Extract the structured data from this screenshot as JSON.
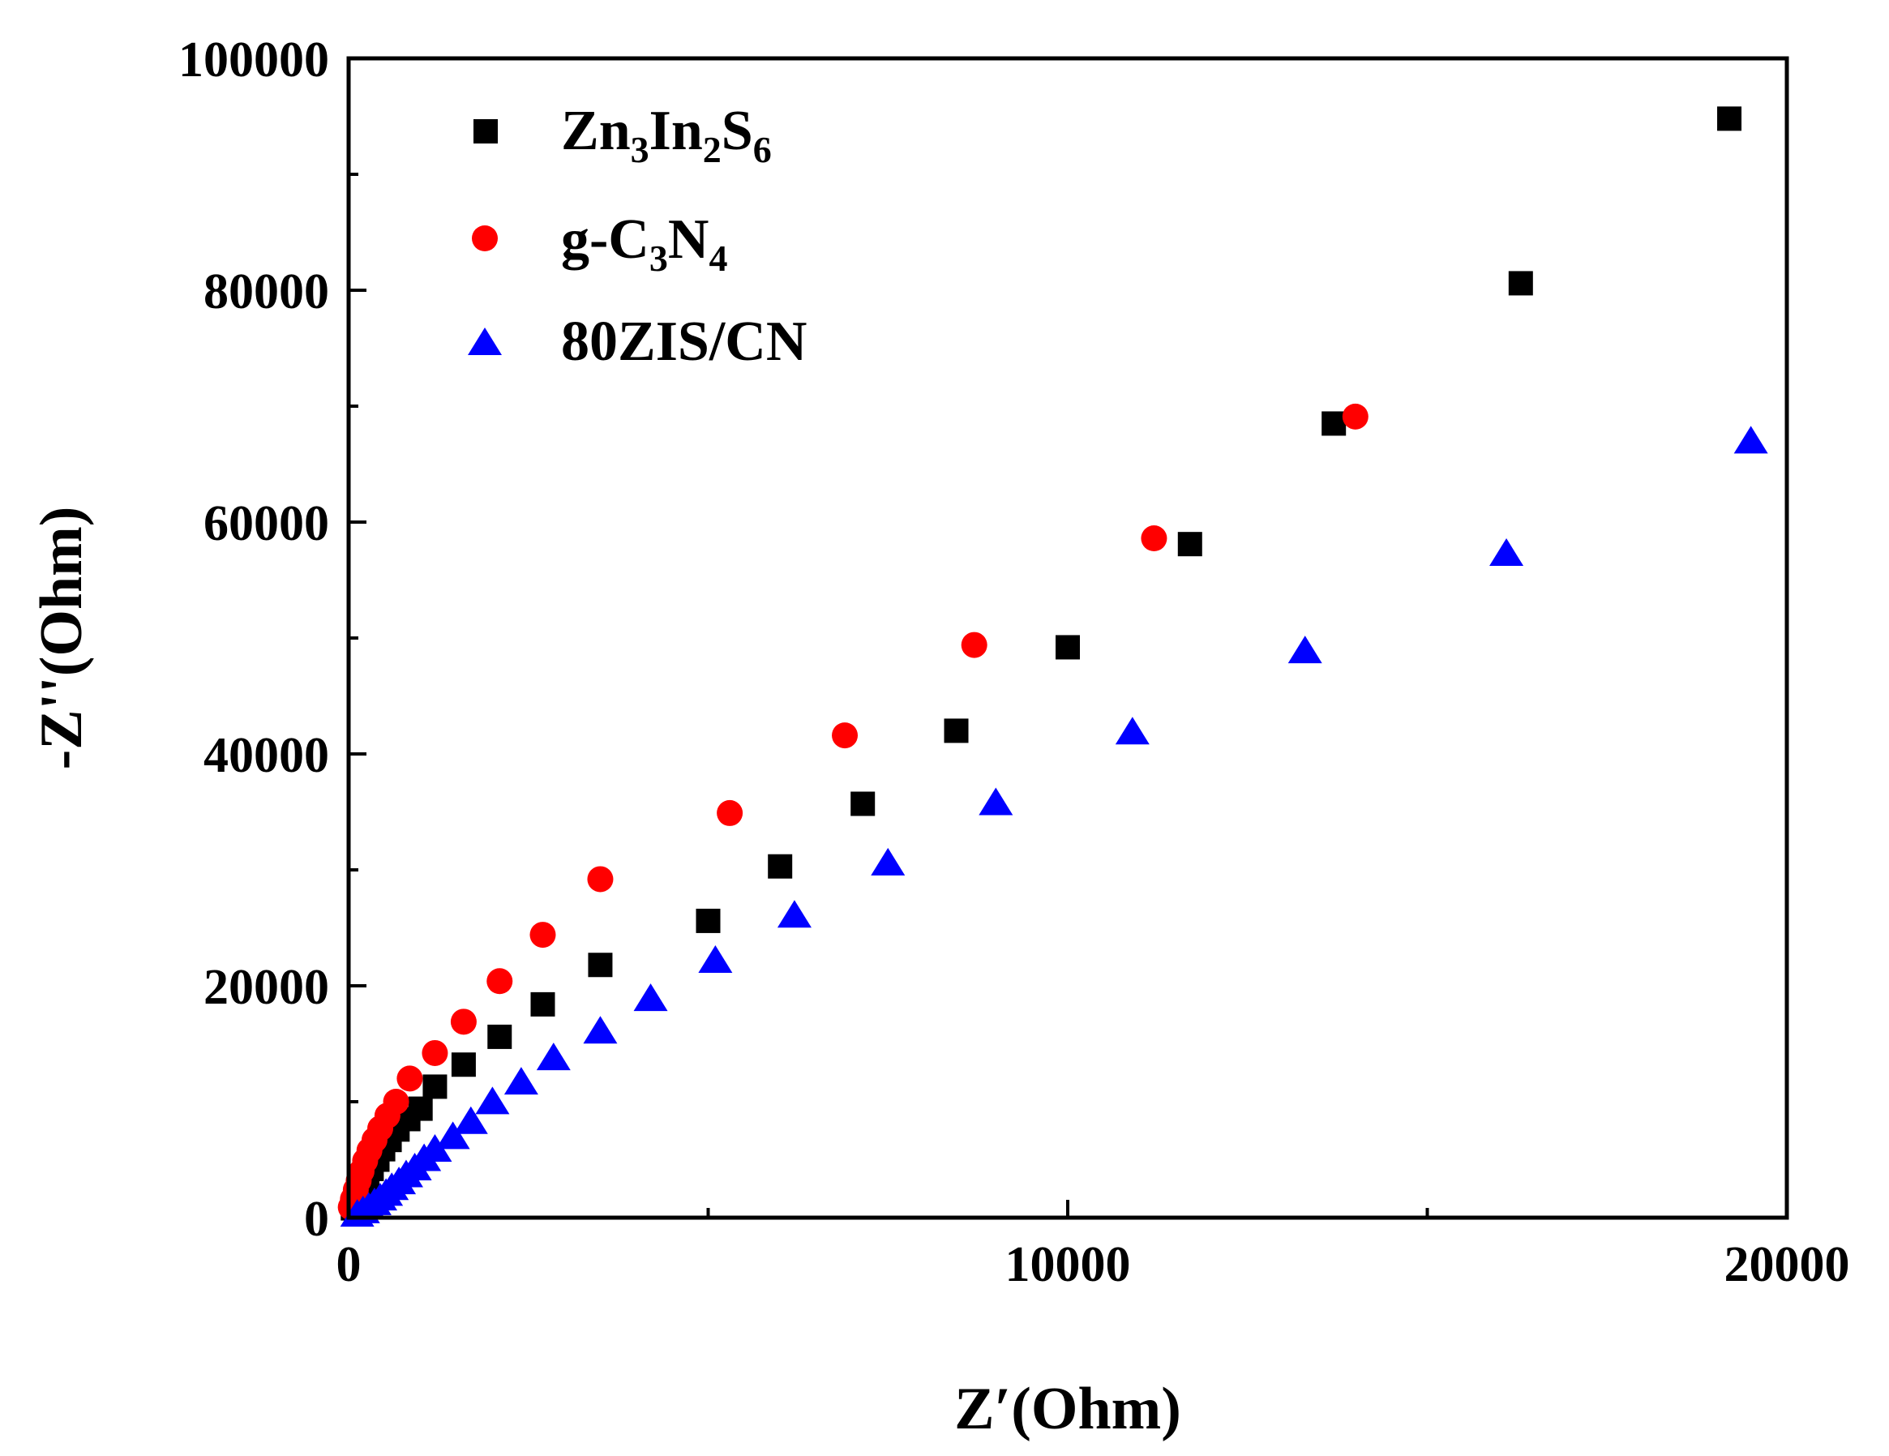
{
  "chart_data": {
    "type": "scatter",
    "title": "",
    "xlabel": "Z′(Ohm)",
    "ylabel": "-Z''(Ohm)",
    "xlim": [
      0,
      20000
    ],
    "ylim": [
      0,
      100000
    ],
    "x_ticks": [
      0,
      10000,
      20000
    ],
    "x_tick_labels": [
      "0",
      "10000",
      "20000"
    ],
    "x_minor_ticks": [
      5000,
      15000
    ],
    "y_ticks": [
      0,
      20000,
      40000,
      60000,
      80000,
      100000
    ],
    "y_tick_labels": [
      "0",
      "20000",
      "40000",
      "60000",
      "80000",
      "100000"
    ],
    "y_minor_ticks": [
      10000,
      30000,
      50000,
      70000,
      90000
    ],
    "grid": false,
    "legend_position": "top-left",
    "legend": {
      "zis": {
        "main": "Zn",
        "sub1": "3",
        "mid": "In",
        "sub2": "2",
        "end": "S",
        "sub3": "6"
      },
      "cn": {
        "main": "g-C",
        "sub1": "3",
        "mid": "N",
        "sub2": "4"
      },
      "composite": {
        "text": "80ZIS/CN"
      }
    },
    "series": [
      {
        "name": "Zn3In2S6",
        "marker": "square",
        "color": "#000000",
        "points": [
          [
            60,
            800
          ],
          [
            100,
            1400
          ],
          [
            150,
            2000
          ],
          [
            200,
            2700
          ],
          [
            260,
            3400
          ],
          [
            320,
            4200
          ],
          [
            400,
            5000
          ],
          [
            480,
            5900
          ],
          [
            570,
            6700
          ],
          [
            680,
            7600
          ],
          [
            830,
            8500
          ],
          [
            1000,
            9400
          ],
          [
            1200,
            11300
          ],
          [
            1600,
            13200
          ],
          [
            2100,
            15600
          ],
          [
            2700,
            18400
          ],
          [
            3500,
            21800
          ],
          [
            5000,
            25600
          ],
          [
            6000,
            30300
          ],
          [
            7150,
            35700
          ],
          [
            8450,
            42000
          ],
          [
            10000,
            49200
          ],
          [
            11700,
            58100
          ],
          [
            13700,
            68500
          ],
          [
            16300,
            80600
          ],
          [
            19200,
            94800
          ]
        ]
      },
      {
        "name": "g-C3N4",
        "marker": "circle",
        "color": "#ff0000",
        "points": [
          [
            30,
            900
          ],
          [
            60,
            1600
          ],
          [
            100,
            2400
          ],
          [
            140,
            3200
          ],
          [
            180,
            4000
          ],
          [
            230,
            4900
          ],
          [
            290,
            5800
          ],
          [
            360,
            6700
          ],
          [
            440,
            7700
          ],
          [
            540,
            8800
          ],
          [
            660,
            10000
          ],
          [
            850,
            12000
          ],
          [
            1200,
            14200
          ],
          [
            1600,
            16900
          ],
          [
            2100,
            20400
          ],
          [
            2700,
            24400
          ],
          [
            3500,
            29200
          ],
          [
            5300,
            34900
          ],
          [
            6900,
            41600
          ],
          [
            8700,
            49400
          ],
          [
            11200,
            58600
          ],
          [
            14000,
            69100
          ]
        ]
      },
      {
        "name": "80ZIS/CN",
        "marker": "triangle",
        "color": "#0000ff",
        "points": [
          [
            120,
            200
          ],
          [
            200,
            500
          ],
          [
            280,
            800
          ],
          [
            360,
            1200
          ],
          [
            440,
            1600
          ],
          [
            520,
            2000
          ],
          [
            600,
            2500
          ],
          [
            700,
            3000
          ],
          [
            800,
            3600
          ],
          [
            920,
            4200
          ],
          [
            1050,
            5000
          ],
          [
            1200,
            5800
          ],
          [
            1450,
            6900
          ],
          [
            1700,
            8200
          ],
          [
            2000,
            9900
          ],
          [
            2400,
            11600
          ],
          [
            2850,
            13700
          ],
          [
            3500,
            16000
          ],
          [
            4200,
            18800
          ],
          [
            5100,
            22100
          ],
          [
            6200,
            26000
          ],
          [
            7500,
            30500
          ],
          [
            9000,
            35700
          ],
          [
            10900,
            41800
          ],
          [
            13300,
            48800
          ],
          [
            16100,
            57200
          ],
          [
            19500,
            66900
          ]
        ]
      }
    ]
  }
}
